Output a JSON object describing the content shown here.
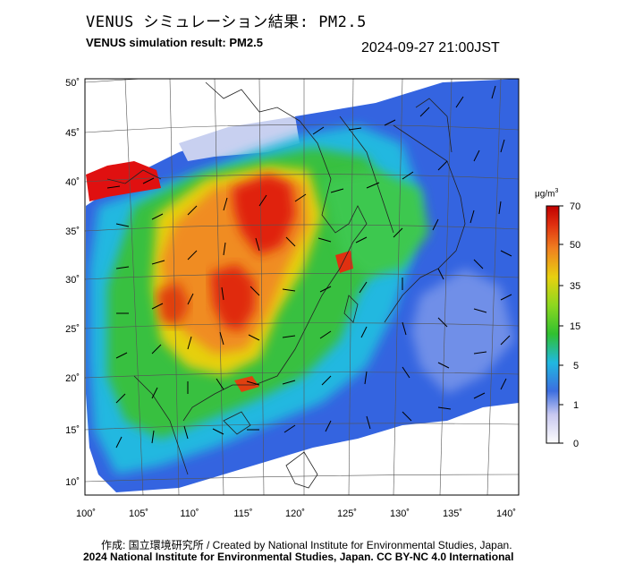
{
  "header": {
    "title_jp": "VENUS シミュレーション結果: PM2.5",
    "title_en": "VENUS simulation result: PM2.5",
    "timestamp": "2024-09-27 21:00JST"
  },
  "map": {
    "lat_labels": [
      "50˚",
      "45˚",
      "40˚",
      "35˚",
      "30˚",
      "25˚",
      "20˚",
      "15˚",
      "10˚"
    ],
    "lon_labels": [
      "100˚",
      "105˚",
      "110˚",
      "115˚",
      "120˚",
      "125˚",
      "130˚",
      "135˚",
      "140˚"
    ]
  },
  "colorbar": {
    "unit": "μg/m",
    "unit_sup": "3",
    "ticks": [
      "70",
      "50",
      "35",
      "15",
      "5",
      "1",
      "0"
    ],
    "colors": [
      "#fcfcfc",
      "#c8c8f0",
      "#3c6ee0",
      "#20b8e0",
      "#30c030",
      "#c8e010",
      "#f0a020",
      "#e03010",
      "#c00000"
    ]
  },
  "footer": {
    "credit": "作成: 国立環境研究所 / Created by National Institute for Environmental Studies, Japan.",
    "copyright": "2024 National Institute for Environmental Studies, Japan. CC BY-NC 4.0 International"
  }
}
